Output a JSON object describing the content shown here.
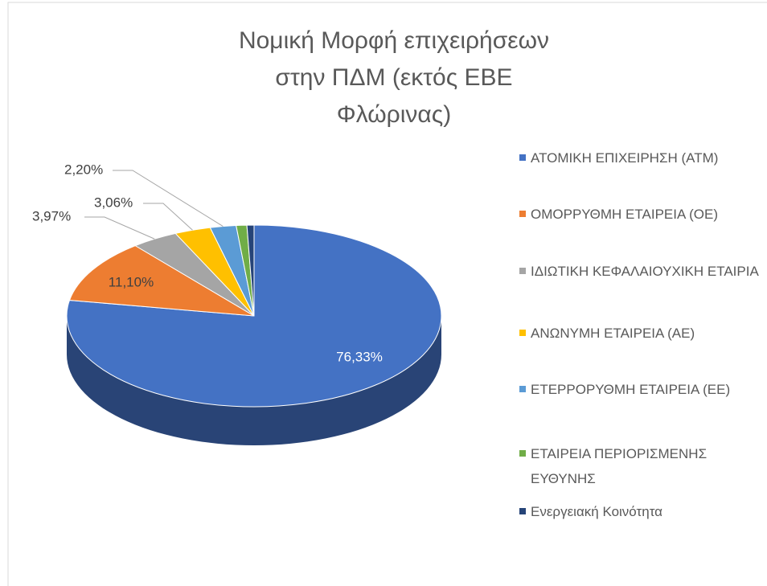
{
  "chart_data": {
    "type": "pie",
    "title": "Νομική Μορφή επιχειρήσεων στην ΠΔΜ (εκτός ΕΒΕ Φλώρινας)",
    "categories": [
      "ΑΤΟΜΙΚΗ ΕΠΙΧΕΙΡΗΣΗ (ΑΤΜ)",
      "ΟΜΟΡΡΥΘΜΗ ΕΤΑΙΡΕΙΑ (ΟΕ)",
      "ΙΔΙΩΤΙΚΗ ΚΕΦΑΛΑΙΟΥΧΙΚΗ ΕΤΑΙΡΙΑ",
      "ΑΝΩΝΥΜΗ ΕΤΑΙΡΕΙΑ (ΑΕ)",
      "ΕΤΕΡΡΟΡΥΘΜΗ ΕΤΑΙΡΕΙΑ (ΕΕ)",
      "ΕΤΑΙΡΕΙΑ ΠΕΡΙΟΡΙΣΜΕΝΗΣ ΕΥΘΥΝΗΣ",
      "Ενεργειακή Κοινότητα"
    ],
    "values": [
      76.33,
      11.1,
      3.97,
      3.06,
      2.2,
      0.9,
      0.6
    ],
    "value_labels": [
      "76,33%",
      "11,10%",
      "3,97%",
      "3,06%",
      "2,20%",
      null,
      null
    ],
    "colors": [
      "#4472c4",
      "#ed7d31",
      "#a5a5a5",
      "#ffc000",
      "#5b9bd5",
      "#70ad47",
      "#264478"
    ],
    "legend": "right"
  }
}
